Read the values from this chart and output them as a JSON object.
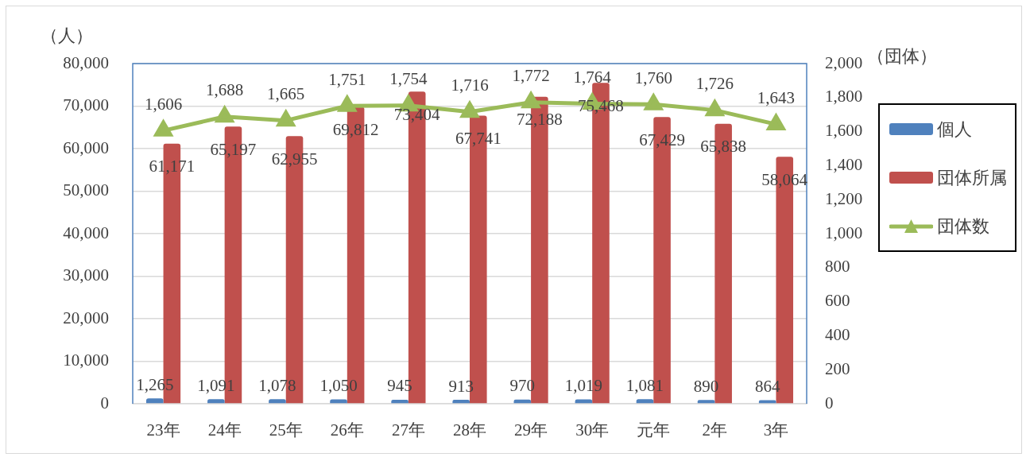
{
  "chart_data": {
    "type": "bar",
    "ylabel": "（人）",
    "y2label": "（団体）",
    "categories": [
      "23年",
      "24年",
      "25年",
      "26年",
      "27年",
      "28年",
      "29年",
      "30年",
      "元年",
      "2年",
      "3年"
    ],
    "series": [
      {
        "name": "個人",
        "color": "#4f81bd",
        "values": [
          1265,
          1091,
          1078,
          1050,
          945,
          913,
          970,
          1019,
          1081,
          890,
          864
        ],
        "value_labels": [
          "1,265",
          "1,091",
          "1,078",
          "1,050",
          "945",
          "913",
          "970",
          "1,019",
          "1,081",
          "890",
          "864"
        ]
      },
      {
        "name": "団体所属",
        "color": "#c0504d",
        "values": [
          61171,
          65197,
          62955,
          69812,
          73404,
          67741,
          72188,
          75468,
          67429,
          65838,
          58064
        ],
        "value_labels": [
          "61,171",
          "65,197",
          "62,955",
          "69,812",
          "73,404",
          "67,741",
          "72,188",
          "75,468",
          "67,429",
          "65,838",
          "58,064"
        ]
      },
      {
        "name": "団体数",
        "type": "line",
        "axis": "y2",
        "color": "#9bbb59",
        "values": [
          1606,
          1688,
          1665,
          1751,
          1754,
          1716,
          1772,
          1764,
          1760,
          1726,
          1643
        ],
        "value_labels": [
          "1,606",
          "1,688",
          "1,665",
          "1,751",
          "1,754",
          "1,716",
          "1,772",
          "1,764",
          "1,760",
          "1,726",
          "1,643"
        ]
      }
    ],
    "ylim": [
      0,
      80000
    ],
    "yticks": [
      0,
      {
        "value": 10000,
        "label": "10,000"
      },
      {
        "value": 20000,
        "label": "20,000"
      },
      {
        "value": 30000,
        "label": "30,000"
      },
      {
        "value": 40000,
        "label": "40,000"
      },
      {
        "value": 50000,
        "label": "50,000"
      },
      {
        "value": 60000,
        "label": "60,000"
      },
      {
        "value": 70000,
        "label": "70,000"
      },
      {
        "value": 80000,
        "label": "80,000"
      }
    ],
    "y2lim": [
      0,
      2000
    ],
    "y2ticks": [
      0,
      200,
      400,
      600,
      800,
      {
        "value": 1000,
        "label": "1,000"
      },
      {
        "value": 1200,
        "label": "1,200"
      },
      {
        "value": 1400,
        "label": "1,400"
      },
      {
        "value": 1600,
        "label": "1,600"
      },
      {
        "value": 1800,
        "label": "1,800"
      },
      {
        "value": 2000,
        "label": "2,000"
      }
    ],
    "grid": "y",
    "legend": "right",
    "marker": "triangle"
  }
}
